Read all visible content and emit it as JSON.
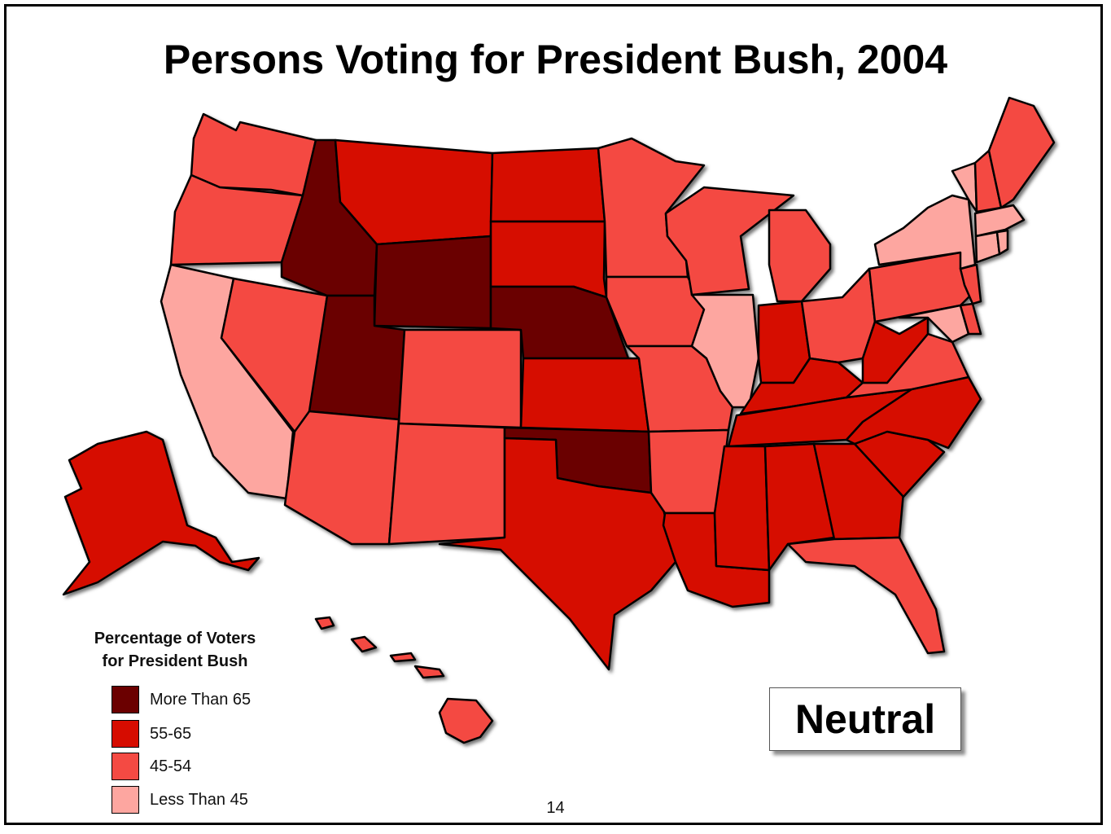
{
  "title": "Persons Voting for President Bush, 2004",
  "legend": {
    "title_line1": "Percentage of Voters",
    "title_line2": "for President Bush",
    "items": [
      {
        "label": "More Than 65",
        "color": "#6b0000",
        "key": "c4"
      },
      {
        "label": "55-65",
        "color": "#d60c00",
        "key": "c3"
      },
      {
        "label": "45-54",
        "color": "#f44a43",
        "key": "c2"
      },
      {
        "label": "Less Than 45",
        "color": "#fda6a0",
        "key": "c1"
      }
    ]
  },
  "badge": "Neutral",
  "page_number": "14",
  "states": {
    "WA": "c2",
    "OR": "c2",
    "CA": "c1",
    "ID": "c4",
    "NV": "c2",
    "MT": "c3",
    "WY": "c4",
    "UT": "c4",
    "AZ": "c2",
    "CO": "c2",
    "NM": "c2",
    "ND": "c3",
    "SD": "c3",
    "NE": "c4",
    "KS": "c3",
    "OK": "c4",
    "TX": "c3",
    "MN": "c2",
    "IA": "c2",
    "MO": "c2",
    "AR": "c2",
    "LA": "c3",
    "WI": "c2",
    "IL": "c1",
    "MI": "c2",
    "IN": "c3",
    "OH": "c2",
    "KY": "c3",
    "TN": "c3",
    "MS": "c3",
    "AL": "c3",
    "GA": "c3",
    "FL": "c2",
    "SC": "c3",
    "NC": "c3",
    "VA": "c2",
    "WV": "c3",
    "PA": "c2",
    "NY": "c1",
    "VT": "c1",
    "NH": "c2",
    "ME": "c2",
    "MA": "c1",
    "CT": "c1",
    "RI": "c1",
    "NJ": "c2",
    "DE": "c2",
    "MD": "c1",
    "AK": "c3",
    "HI": "c2"
  }
}
